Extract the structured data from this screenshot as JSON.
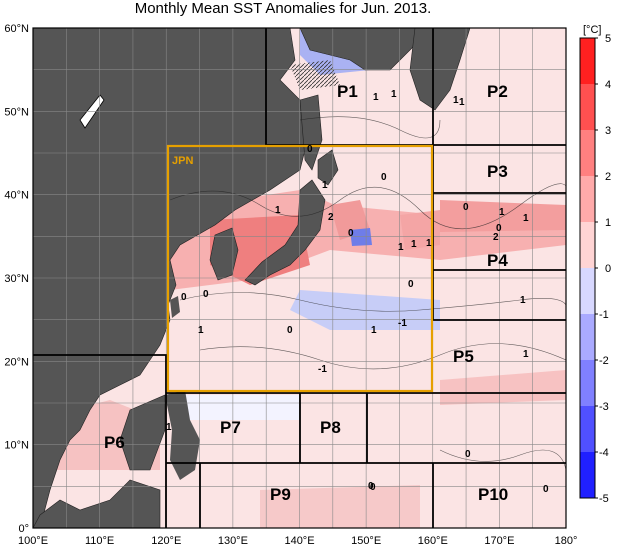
{
  "title": "Monthly Mean SST Anomalies for Jun. 2013.",
  "lat_ticks": [
    "60°N",
    "50°N",
    "40°N",
    "30°N",
    "20°N",
    "10°N",
    "0°"
  ],
  "lon_ticks": [
    "100°E",
    "110°E",
    "120°E",
    "130°E",
    "140°E",
    "150°E",
    "160°E",
    "170°E",
    "180°"
  ],
  "colorbar": {
    "unit": "[°C]",
    "ticks": [
      "5",
      "4",
      "3",
      "2",
      "1",
      "0",
      "-1",
      "-2",
      "-3",
      "-4",
      "-5"
    ],
    "colors": [
      "#1a1aff",
      "#4c4cff",
      "#7a7aff",
      "#a6a6ff",
      "#cfcfff",
      "#ffffff",
      "#ffd0d0",
      "#ffa6a6",
      "#ff7a7a",
      "#ff4c4c",
      "#ff1a1a"
    ]
  },
  "regions": [
    {
      "label": "JPN",
      "color": "#e6a000"
    },
    {
      "label": "P1"
    },
    {
      "label": "P2"
    },
    {
      "label": "P3"
    },
    {
      "label": "P4"
    },
    {
      "label": "P5"
    },
    {
      "label": "P6"
    },
    {
      "label": "P7"
    },
    {
      "label": "P8"
    },
    {
      "label": "P9"
    },
    {
      "label": "P10"
    }
  ],
  "contour_labels": [
    "1",
    "1",
    "1",
    "0",
    "1",
    "0",
    "1",
    "2",
    "0",
    "1",
    "1",
    "1",
    "1",
    "0",
    "0",
    "1",
    "2",
    "1",
    "0",
    "0",
    "1",
    "0",
    "-1",
    "1",
    "-1",
    "1",
    "0",
    "1",
    "0",
    "0",
    "0",
    "0",
    "1"
  ],
  "colors": {
    "land": "#555555",
    "sea_base": "#ffffff",
    "grid": "#888888",
    "box": "#000000"
  }
}
